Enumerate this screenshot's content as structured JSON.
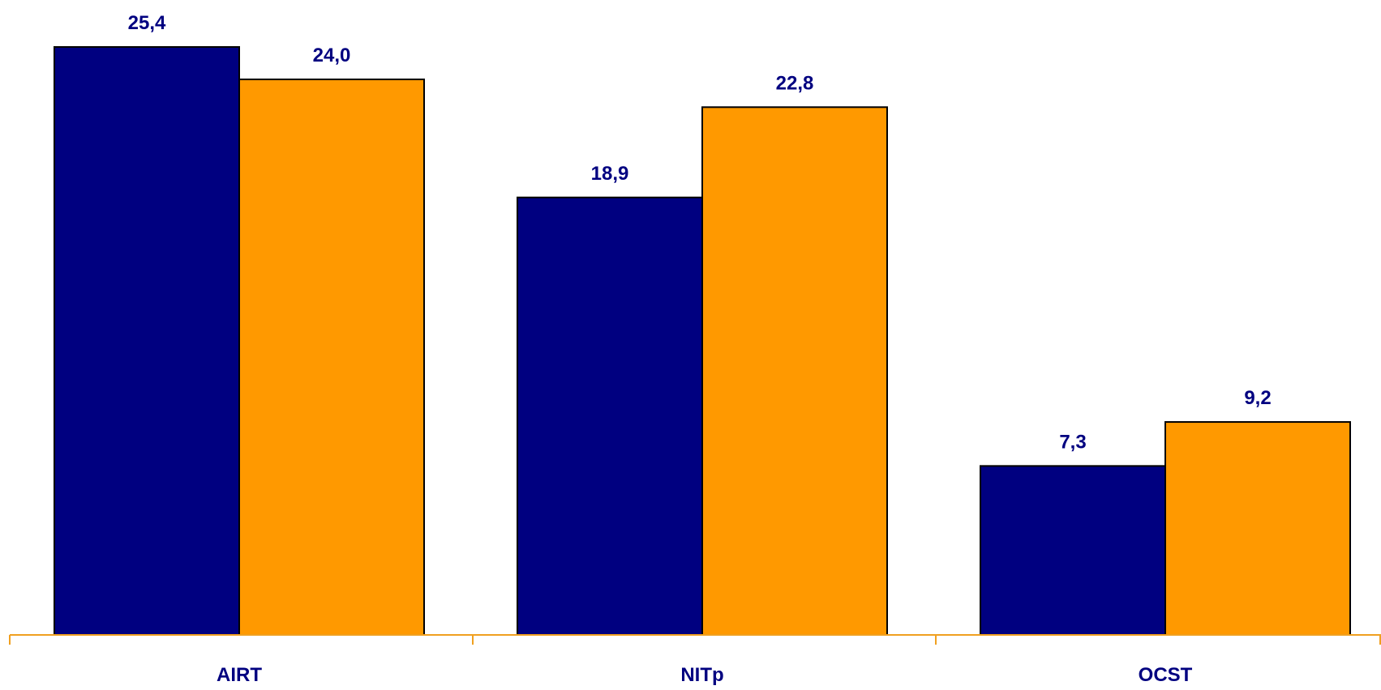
{
  "chart_data": {
    "type": "bar",
    "title": "",
    "xlabel": "",
    "ylabel": "",
    "categories": [
      "AIRT",
      "NITp",
      "OCST"
    ],
    "series": [
      {
        "color": "#000080",
        "values": [
          25.4,
          18.9,
          7.3
        ],
        "labels": [
          "25,4",
          "18,9",
          "7,3"
        ]
      },
      {
        "color": "#FF9900",
        "values": [
          24.0,
          22.8,
          9.2
        ],
        "labels": [
          "24,0",
          "22,8",
          "9,2"
        ]
      }
    ],
    "ylim": [
      0,
      25.4
    ],
    "grid": false,
    "legend": "none",
    "axis_color": "#F0A020",
    "label_color": "#000080"
  }
}
